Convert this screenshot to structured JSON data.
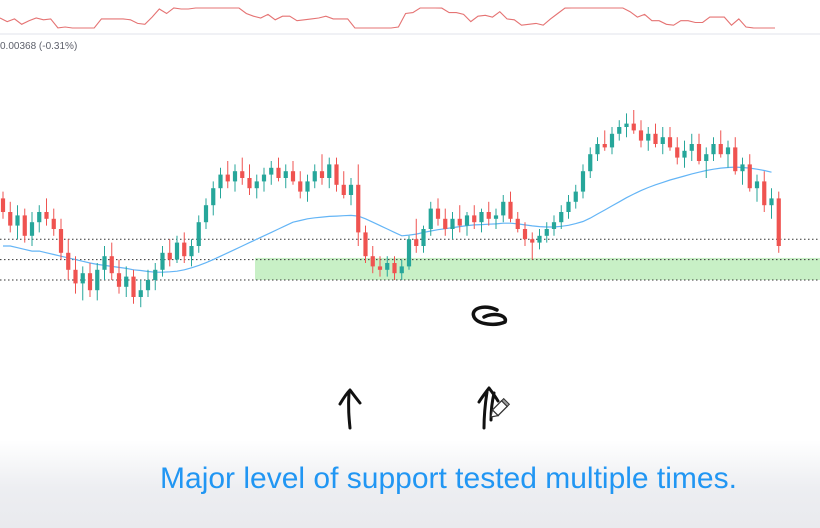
{
  "header": {
    "change_readout": "0.00368 (-0.31%)"
  },
  "caption": "Major level of support tested multiple times.",
  "colors": {
    "up_candle": "#26a69a",
    "down_candle": "#ef5350",
    "moving_average": "#64b5f6",
    "oscillator": "#e57373",
    "support_zone": "#c8f0c6",
    "caption": "#2196f3",
    "level_line": "#333333",
    "annotation_ink": "#111111"
  },
  "annotations": {
    "support_zone": "green-highlight-rectangle",
    "drawn_marks": [
      "hand-drawn-arrow-up",
      "hand-drawn-arrow-up-double",
      "hand-drawn-loop",
      "pencil-cursor-icon"
    ]
  },
  "chart_data": {
    "type": "candlestick",
    "title": "",
    "xlabel": "",
    "ylabel": "",
    "ylim": [
      0,
      100
    ],
    "grid": false,
    "note_units": "price axis not visible; values on a relative 0-100 scale",
    "ohlc": [
      [
        74,
        76,
        68,
        70
      ],
      [
        70,
        73,
        64,
        66
      ],
      [
        66,
        72,
        62,
        69
      ],
      [
        69,
        71,
        61,
        63
      ],
      [
        63,
        70,
        60,
        67
      ],
      [
        67,
        72,
        64,
        70
      ],
      [
        70,
        74,
        66,
        68
      ],
      [
        68,
        71,
        63,
        65
      ],
      [
        65,
        68,
        56,
        58
      ],
      [
        58,
        62,
        50,
        53
      ],
      [
        53,
        57,
        46,
        49
      ],
      [
        49,
        54,
        44,
        52
      ],
      [
        52,
        55,
        45,
        47
      ],
      [
        47,
        55,
        44,
        53
      ],
      [
        53,
        60,
        50,
        57
      ],
      [
        57,
        61,
        50,
        52
      ],
      [
        52,
        56,
        46,
        48
      ],
      [
        48,
        54,
        45,
        51
      ],
      [
        51,
        53,
        43,
        45
      ],
      [
        45,
        50,
        42,
        47
      ],
      [
        47,
        53,
        45,
        50
      ],
      [
        50,
        55,
        47,
        53
      ],
      [
        53,
        60,
        51,
        58
      ],
      [
        58,
        62,
        54,
        56
      ],
      [
        56,
        63,
        55,
        61
      ],
      [
        61,
        64,
        55,
        57
      ],
      [
        57,
        62,
        54,
        60
      ],
      [
        60,
        69,
        58,
        67
      ],
      [
        67,
        74,
        65,
        72
      ],
      [
        72,
        79,
        69,
        77
      ],
      [
        77,
        83,
        74,
        81
      ],
      [
        81,
        85,
        77,
        79
      ],
      [
        79,
        84,
        76,
        82
      ],
      [
        82,
        86,
        78,
        80
      ],
      [
        80,
        84,
        75,
        77
      ],
      [
        77,
        81,
        74,
        79
      ],
      [
        79,
        83,
        76,
        81
      ],
      [
        81,
        85,
        78,
        83
      ],
      [
        83,
        86,
        79,
        80
      ],
      [
        80,
        84,
        77,
        82
      ],
      [
        82,
        85,
        78,
        79
      ],
      [
        79,
        82,
        74,
        76
      ],
      [
        76,
        81,
        73,
        79
      ],
      [
        79,
        84,
        77,
        82
      ],
      [
        82,
        87,
        78,
        80
      ],
      [
        80,
        86,
        77,
        84
      ],
      [
        84,
        86,
        76,
        78
      ],
      [
        78,
        82,
        74,
        75
      ],
      [
        75,
        80,
        72,
        78
      ],
      [
        78,
        84,
        60,
        64
      ],
      [
        64,
        66,
        55,
        57
      ],
      [
        57,
        60,
        52,
        54
      ],
      [
        54,
        57,
        51,
        53
      ],
      [
        53,
        57,
        51,
        55
      ],
      [
        55,
        57,
        50,
        52
      ],
      [
        52,
        56,
        50,
        54
      ],
      [
        54,
        63,
        53,
        62
      ],
      [
        62,
        68,
        58,
        60
      ],
      [
        60,
        66,
        58,
        65
      ],
      [
        65,
        73,
        63,
        71
      ],
      [
        71,
        74,
        66,
        68
      ],
      [
        68,
        71,
        63,
        65
      ],
      [
        65,
        70,
        62,
        68
      ],
      [
        68,
        72,
        64,
        66
      ],
      [
        66,
        70,
        63,
        69
      ],
      [
        69,
        72,
        65,
        67
      ],
      [
        67,
        71,
        64,
        70
      ],
      [
        70,
        73,
        66,
        68
      ],
      [
        68,
        71,
        65,
        69
      ],
      [
        69,
        75,
        67,
        73
      ],
      [
        73,
        76,
        67,
        68
      ],
      [
        68,
        70,
        64,
        65
      ],
      [
        65,
        67,
        60,
        62
      ],
      [
        62,
        64,
        56,
        61
      ],
      [
        61,
        65,
        59,
        63
      ],
      [
        63,
        67,
        61,
        65
      ],
      [
        65,
        69,
        63,
        67
      ],
      [
        67,
        72,
        65,
        70
      ],
      [
        70,
        75,
        68,
        73
      ],
      [
        73,
        78,
        71,
        76
      ],
      [
        76,
        84,
        74,
        82
      ],
      [
        82,
        89,
        80,
        87
      ],
      [
        87,
        92,
        85,
        90
      ],
      [
        90,
        94,
        88,
        89
      ],
      [
        89,
        95,
        87,
        93
      ],
      [
        93,
        97,
        91,
        95
      ],
      [
        95,
        99,
        92,
        96
      ],
      [
        96,
        100,
        93,
        94
      ],
      [
        94,
        97,
        89,
        91
      ],
      [
        91,
        95,
        88,
        93
      ],
      [
        93,
        96,
        89,
        90
      ],
      [
        90,
        95,
        87,
        92
      ],
      [
        92,
        95,
        88,
        89
      ],
      [
        89,
        92,
        84,
        86
      ],
      [
        86,
        91,
        83,
        88
      ],
      [
        88,
        93,
        85,
        90
      ],
      [
        90,
        93,
        84,
        85
      ],
      [
        85,
        89,
        80,
        87
      ],
      [
        87,
        92,
        85,
        90
      ],
      [
        90,
        94,
        86,
        87
      ],
      [
        87,
        91,
        83,
        89
      ],
      [
        89,
        92,
        81,
        82
      ],
      [
        82,
        86,
        78,
        84
      ],
      [
        84,
        87,
        76,
        77
      ],
      [
        77,
        81,
        73,
        79
      ],
      [
        79,
        82,
        70,
        72
      ],
      [
        72,
        77,
        68,
        74
      ],
      [
        74,
        76,
        58,
        60
      ]
    ],
    "moving_average": [
      60,
      60,
      59.5,
      59,
      58.5,
      58.5,
      58,
      57.5,
      57,
      56.5,
      56,
      55.5,
      55,
      54.6,
      54.3,
      54,
      53.7,
      53.4,
      53,
      52.8,
      52.5,
      52.3,
      52.3,
      52.4,
      52.6,
      53,
      53.6,
      54.3,
      55.1,
      56,
      57,
      58,
      59,
      60,
      61,
      62,
      63,
      64,
      65,
      66,
      67,
      67.5,
      68,
      68.3,
      68.5,
      68.7,
      68.8,
      68.9,
      69,
      68.8,
      68,
      67,
      66,
      65,
      64,
      63,
      63.2,
      63.5,
      64,
      64.4,
      64.8,
      65.1,
      65.4,
      65.7,
      66,
      66.2,
      66.3,
      66.4,
      66.5,
      66.7,
      66.7,
      66.5,
      66.2,
      65.9,
      65.7,
      65.6,
      65.6,
      65.8,
      66.1,
      66.6,
      67.2,
      68.2,
      69.4,
      70.6,
      71.8,
      73,
      74.2,
      75.3,
      76.3,
      77.2,
      78,
      78.7,
      79.4,
      80,
      80.6,
      81.2,
      81.7,
      82.2,
      82.6,
      82.9,
      83.1,
      83.2,
      83.1,
      82.9,
      82.6,
      82.2,
      81.7
    ],
    "levels": [
      62,
      56,
      50
    ],
    "support_zone": [
      50,
      56.5
    ]
  }
}
